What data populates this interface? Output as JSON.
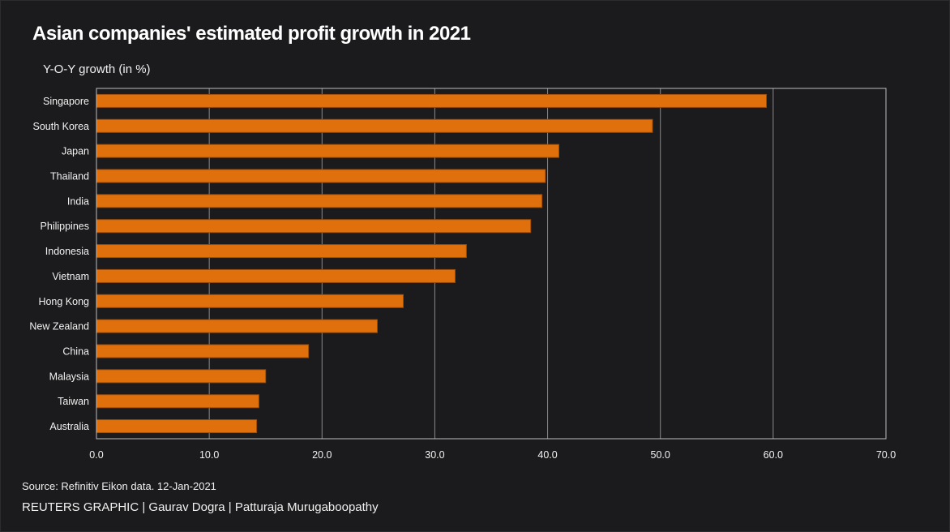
{
  "header": {
    "title": "Asian companies' estimated profit growth in 2021",
    "subtitle": "Y-O-Y growth (in %)"
  },
  "footer": {
    "source": "Source: Refinitiv Eikon data. 12-Jan-2021",
    "credit": "REUTERS GRAPHIC | Gaurav Dogra | Patturaja Murugaboopathy"
  },
  "colors": {
    "background": "#1b1b1d",
    "bar": "#e0700b",
    "bar_edge": "#9c4c0a",
    "grid": "#8a8a8a",
    "axis_frame": "#bdbdbd",
    "text": "#f2f2f2"
  },
  "chart_data": {
    "type": "bar",
    "orientation": "horizontal",
    "title": "Asian companies' estimated profit growth in 2021",
    "subtitle": "Y-O-Y growth (in %)",
    "xlabel": "",
    "ylabel": "",
    "xlim": [
      0,
      70
    ],
    "xticks": [
      0,
      10,
      20,
      30,
      40,
      50,
      60,
      70
    ],
    "xtick_labels": [
      "0.0",
      "10.0",
      "20.0",
      "30.0",
      "40.0",
      "50.0",
      "60.0",
      "70.0"
    ],
    "grid": "vertical",
    "legend": "none",
    "categories": [
      "Singapore",
      "South Korea",
      "Japan",
      "Thailand",
      "India",
      "Philippines",
      "Indonesia",
      "Vietnam",
      "Hong Kong",
      "New Zealand",
      "China",
      "Malaysia",
      "Taiwan",
      "Australia"
    ],
    "values": [
      59.4,
      49.3,
      41.0,
      39.8,
      39.5,
      38.5,
      32.8,
      31.8,
      27.2,
      24.9,
      18.8,
      15.0,
      14.4,
      14.2
    ]
  }
}
